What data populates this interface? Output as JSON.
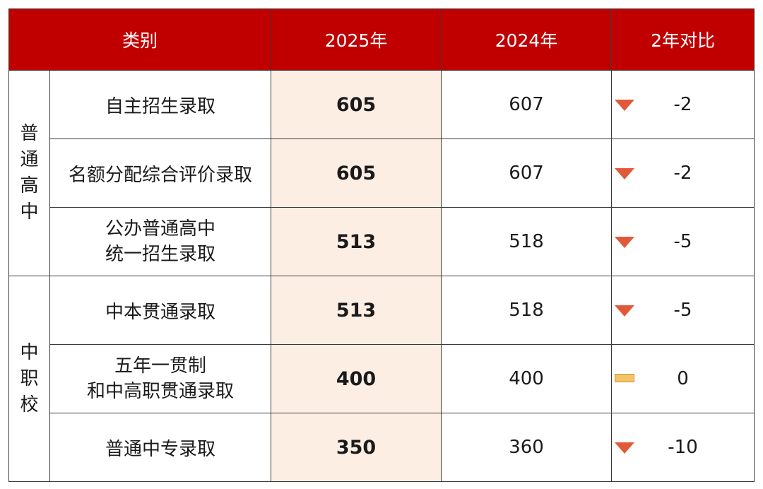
{
  "header": {
    "category": "类别",
    "y2025": "2025年",
    "y2024": "2024年",
    "compare": "2年对比"
  },
  "groups": [
    {
      "chars": [
        "普",
        "通",
        "高",
        "中"
      ]
    },
    {
      "chars": [
        "中",
        "职",
        "校"
      ]
    }
  ],
  "rows": [
    {
      "category": [
        "自主招生录取"
      ],
      "y2025": "605",
      "y2024": "607",
      "diff": "-2",
      "trend": "down"
    },
    {
      "category": [
        "名额分配综合评价录取"
      ],
      "y2025": "605",
      "y2024": "607",
      "diff": "-2",
      "trend": "down"
    },
    {
      "category": [
        "公办普通高中",
        "统一招生录取"
      ],
      "y2025": "513",
      "y2024": "518",
      "diff": "-5",
      "trend": "down"
    },
    {
      "category": [
        "中本贯通录取"
      ],
      "y2025": "513",
      "y2024": "518",
      "diff": "-5",
      "trend": "down"
    },
    {
      "category": [
        "五年一贯制",
        "和中高职贯通录取"
      ],
      "y2025": "400",
      "y2024": "400",
      "diff": "0",
      "trend": "flat"
    },
    {
      "category": [
        "普通中专录取"
      ],
      "y2025": "350",
      "y2024": "360",
      "diff": "-10",
      "trend": "down"
    }
  ],
  "colors": {
    "header_bg": "#c00000",
    "highlight_bg": "#fdeee4",
    "down": "#e05a3a",
    "flat": "#f3c46a"
  }
}
